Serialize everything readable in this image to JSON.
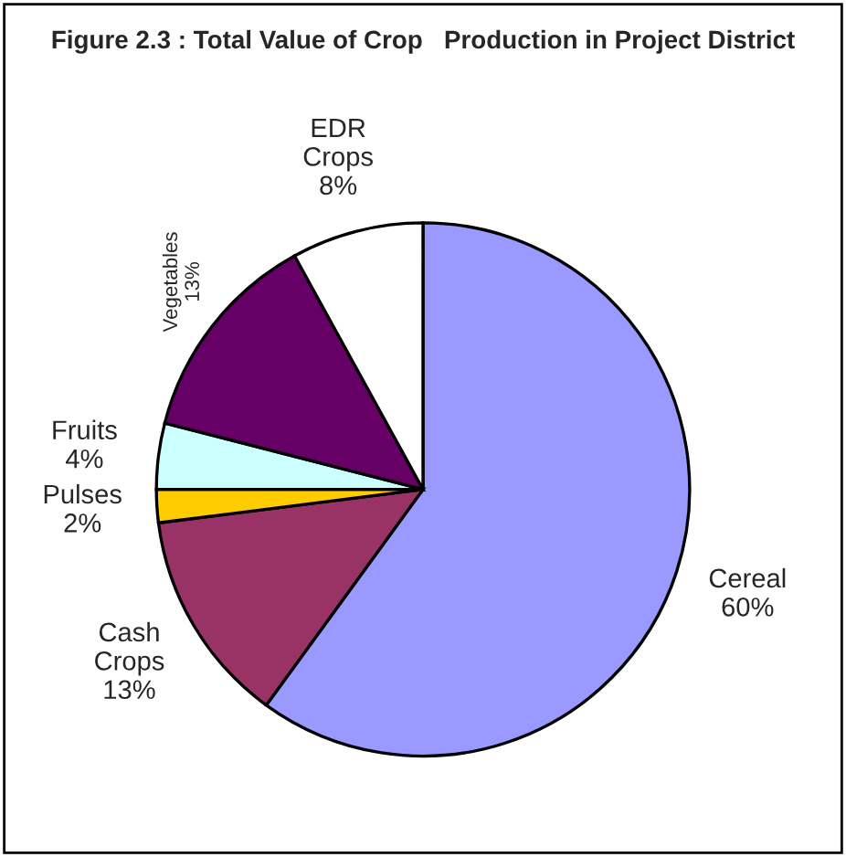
{
  "chart_data": {
    "type": "pie",
    "title": "Figure 2.3 : Total Value of Crop   Production in Project District",
    "categories": [
      "Cereal",
      "Cash Crops",
      "Pulses",
      "Fruits",
      "Vegetables",
      "EDR Crops"
    ],
    "values": [
      60,
      13,
      2,
      4,
      13,
      8
    ],
    "colors": [
      "#9999ff",
      "#993366",
      "#ffcc00",
      "#ccffff",
      "#660066",
      "#ffffff"
    ],
    "value_labels": [
      "60%",
      "13%",
      "2%",
      "4%",
      "13%",
      "8%"
    ],
    "legend": false
  }
}
